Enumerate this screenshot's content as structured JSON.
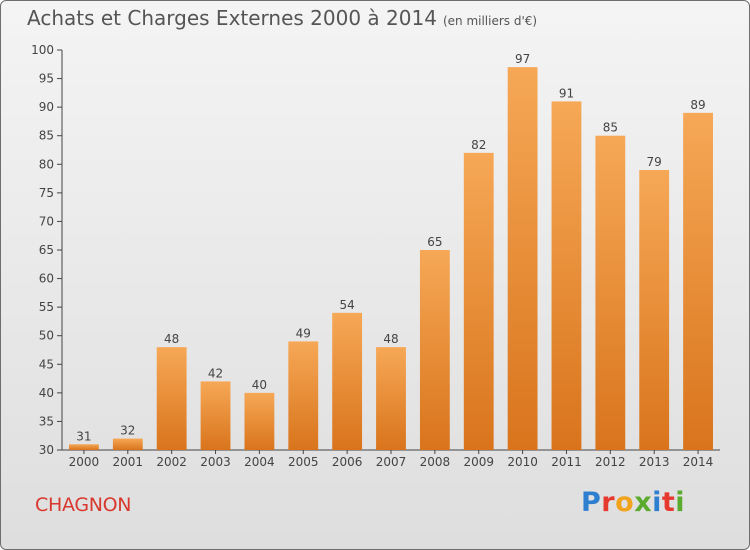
{
  "header": {
    "title": "Achats et Charges Externes 2000 à 2014",
    "subtitle": "(en milliers d'€)"
  },
  "footer": {
    "location": "CHAGNON",
    "logo_text": "Proxiti",
    "logo_colors": [
      "#2f7fd1",
      "#e6392e",
      "#f2a31c",
      "#5aab2e",
      "#2f7fd1",
      "#e6392e",
      "#5aab2e"
    ]
  },
  "colors": {
    "bar_light": "#f6a856",
    "bar_dark": "#d9741c",
    "label": "#444444",
    "axis": "#444444",
    "grid": "#c9c9c9"
  },
  "chart_data": {
    "type": "bar",
    "title": "Achats et Charges Externes 2000 à 2014",
    "subtitle": "(en milliers d'€)",
    "categories": [
      "2000",
      "2001",
      "2002",
      "2003",
      "2004",
      "2005",
      "2006",
      "2007",
      "2008",
      "2009",
      "2010",
      "2011",
      "2012",
      "2013",
      "2014"
    ],
    "values": [
      31,
      32,
      48,
      42,
      40,
      49,
      54,
      48,
      65,
      82,
      97,
      91,
      85,
      79,
      89
    ],
    "ylim": [
      30,
      100
    ],
    "yticks": [
      30,
      35,
      40,
      45,
      50,
      55,
      60,
      65,
      70,
      75,
      80,
      85,
      90,
      95,
      100
    ],
    "grid": false,
    "legend": "none"
  }
}
